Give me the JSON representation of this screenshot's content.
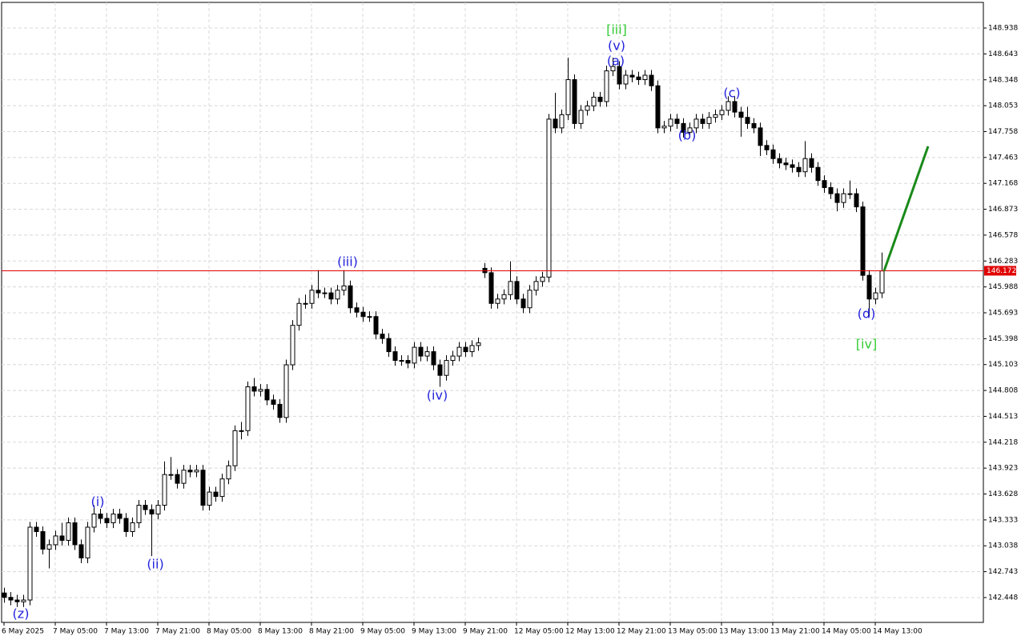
{
  "chart_data": {
    "type": "candlestick",
    "up_color": "#ffffff",
    "down_color": "#000000",
    "edge_color": "#000000",
    "categories": [
      "6 May 2025",
      null,
      null,
      null,
      null,
      null,
      null,
      null,
      "7 May 05:00",
      null,
      null,
      null,
      null,
      null,
      null,
      null,
      "7 May 13:00",
      null,
      null,
      null,
      null,
      null,
      null,
      null,
      "7 May 21:00",
      null,
      null,
      null,
      null,
      null,
      null,
      null,
      "8 May 05:00",
      null,
      null,
      null,
      null,
      null,
      null,
      null,
      "8 May 13:00",
      null,
      null,
      null,
      null,
      null,
      null,
      null,
      "8 May 21:00",
      null,
      null,
      null,
      null,
      null,
      null,
      null,
      "9 May 05:00",
      null,
      null,
      null,
      null,
      null,
      null,
      null,
      "9 May 13:00",
      null,
      null,
      null,
      null,
      null,
      null,
      null,
      "9 May 21:00",
      null,
      null,
      null,
      null,
      null,
      null,
      null,
      "12 May 05:00",
      null,
      null,
      null,
      null,
      null,
      null,
      null,
      "12 May 13:00",
      null,
      null,
      null,
      null,
      null,
      null,
      null,
      "12 May 21:00",
      null,
      null,
      null,
      null,
      null,
      null,
      null,
      "13 May 05:00",
      null,
      null,
      null,
      null,
      null,
      null,
      null,
      "13 May 13:00",
      null,
      null,
      null,
      null,
      null,
      null,
      null,
      "13 May 21:00",
      null,
      null,
      null,
      null,
      null,
      null,
      null,
      "14 May 05:00",
      null,
      null,
      null,
      null,
      null,
      null,
      null,
      "14 May 13:00",
      null
    ],
    "open": [
      142.5,
      142.45,
      142.42,
      142.4,
      142.42,
      143.25,
      143.2,
      143.0,
      143.05,
      143.15,
      143.1,
      143.3,
      143.05,
      142.9,
      143.25,
      143.4,
      143.35,
      143.3,
      143.4,
      143.35,
      143.2,
      143.3,
      143.5,
      143.45,
      143.4,
      143.5,
      143.85,
      143.85,
      143.75,
      143.9,
      143.88,
      143.9,
      143.5,
      143.65,
      143.6,
      143.8,
      143.95,
      144.35,
      144.35,
      144.85,
      144.8,
      144.82,
      144.7,
      144.65,
      144.5,
      145.1,
      145.55,
      145.8,
      145.8,
      145.95,
      145.92,
      145.92,
      145.85,
      145.95,
      146.0,
      145.75,
      145.7,
      145.65,
      145.65,
      145.45,
      145.4,
      145.25,
      145.15,
      145.15,
      145.12,
      145.3,
      145.2,
      145.25,
      145.1,
      144.98,
      145.15,
      145.2,
      145.3,
      145.25,
      145.32,
      146.2,
      146.15,
      145.8,
      145.85,
      145.9,
      146.05,
      145.85,
      145.75,
      145.95,
      146.05,
      146.1,
      147.9,
      147.8,
      147.95,
      148.35,
      147.85,
      148.0,
      148.05,
      148.15,
      148.1,
      148.45,
      148.5,
      148.3,
      148.4,
      148.38,
      148.35,
      148.4,
      148.28,
      147.8,
      147.82,
      147.9,
      147.85,
      147.75,
      147.8,
      147.9,
      147.85,
      147.92,
      147.95,
      148.0,
      148.1,
      147.98,
      147.92,
      147.85,
      147.8,
      147.6,
      147.55,
      147.45,
      147.4,
      147.38,
      147.35,
      147.3,
      147.45,
      147.35,
      147.2,
      147.12,
      147.05,
      146.95,
      147.05,
      147.05,
      146.9,
      146.12,
      145.85,
      145.92
    ],
    "high": [
      142.56,
      142.51,
      142.48,
      142.48,
      143.31,
      143.31,
      143.26,
      143.11,
      143.21,
      143.3,
      143.36,
      143.36,
      143.11,
      143.31,
      143.5,
      143.46,
      143.41,
      143.46,
      143.46,
      143.41,
      143.36,
      143.56,
      143.56,
      143.51,
      143.56,
      144.0,
      144.05,
      143.91,
      143.96,
      143.96,
      143.96,
      143.96,
      143.71,
      143.71,
      143.86,
      144.01,
      144.41,
      144.45,
      144.91,
      144.95,
      144.88,
      144.88,
      144.76,
      144.71,
      145.16,
      145.61,
      145.86,
      145.9,
      146.01,
      146.18,
      145.98,
      145.98,
      146.01,
      146.18,
      146.06,
      145.81,
      145.76,
      145.71,
      145.71,
      145.51,
      145.46,
      145.31,
      145.21,
      145.21,
      145.36,
      145.36,
      145.31,
      145.31,
      145.16,
      145.21,
      145.26,
      145.36,
      145.36,
      145.38,
      145.41,
      146.26,
      146.21,
      145.91,
      145.96,
      146.28,
      146.11,
      145.91,
      146.01,
      146.11,
      146.16,
      147.96,
      148.2,
      148.01,
      148.6,
      148.41,
      148.06,
      148.11,
      148.21,
      148.21,
      148.51,
      148.6,
      148.56,
      148.46,
      148.46,
      148.44,
      148.46,
      148.46,
      148.34,
      147.88,
      147.96,
      147.96,
      147.91,
      147.86,
      147.96,
      147.96,
      147.98,
      148.01,
      148.06,
      148.16,
      148.16,
      148.04,
      148.04,
      147.91,
      147.86,
      147.66,
      147.61,
      147.51,
      147.46,
      147.44,
      147.41,
      147.65,
      147.51,
      147.41,
      147.26,
      147.18,
      147.11,
      147.11,
      147.2,
      147.11,
      146.96,
      146.18,
      145.98,
      146.38
    ],
    "low": [
      142.39,
      142.36,
      142.34,
      142.34,
      142.36,
      143.14,
      142.94,
      142.78,
      142.99,
      143.04,
      143.04,
      142.99,
      142.84,
      142.84,
      143.19,
      143.29,
      143.24,
      143.24,
      143.29,
      143.14,
      143.14,
      143.24,
      143.39,
      142.92,
      143.34,
      143.44,
      143.79,
      143.69,
      143.69,
      143.82,
      143.82,
      143.44,
      143.44,
      143.54,
      143.54,
      143.74,
      143.89,
      144.25,
      144.29,
      144.74,
      144.74,
      144.64,
      144.59,
      144.44,
      144.44,
      145.04,
      145.49,
      145.74,
      145.74,
      145.86,
      145.86,
      145.79,
      145.79,
      145.89,
      145.69,
      145.64,
      145.59,
      145.59,
      145.39,
      145.34,
      145.19,
      145.09,
      145.09,
      145.06,
      145.06,
      145.14,
      145.14,
      145.04,
      144.85,
      144.92,
      145.09,
      145.14,
      145.19,
      145.19,
      145.26,
      146.09,
      145.74,
      145.74,
      145.79,
      145.84,
      145.79,
      145.69,
      145.69,
      145.89,
      145.99,
      146.04,
      147.74,
      147.74,
      147.89,
      147.79,
      147.79,
      147.94,
      147.99,
      148.04,
      148.04,
      148.39,
      148.24,
      148.24,
      148.32,
      148.29,
      148.29,
      148.22,
      147.74,
      147.74,
      147.76,
      147.79,
      147.69,
      147.69,
      147.74,
      147.79,
      147.79,
      147.86,
      147.89,
      147.94,
      147.92,
      147.7,
      147.79,
      147.74,
      147.48,
      147.49,
      147.39,
      147.34,
      147.32,
      147.29,
      147.24,
      147.24,
      147.29,
      147.14,
      147.06,
      146.99,
      146.85,
      146.89,
      146.99,
      146.84,
      146.06,
      145.65,
      145.79,
      145.86
    ],
    "close": [
      142.45,
      142.42,
      142.4,
      142.42,
      143.25,
      143.2,
      143.0,
      143.05,
      143.15,
      143.1,
      143.3,
      143.05,
      142.9,
      143.25,
      143.4,
      143.35,
      143.3,
      143.4,
      143.35,
      143.2,
      143.3,
      143.5,
      143.45,
      143.4,
      143.5,
      143.85,
      143.85,
      143.75,
      143.9,
      143.88,
      143.9,
      143.5,
      143.65,
      143.6,
      143.8,
      143.95,
      144.35,
      144.35,
      144.85,
      144.8,
      144.82,
      144.7,
      144.65,
      144.5,
      145.1,
      145.55,
      145.8,
      145.8,
      145.95,
      145.92,
      145.92,
      145.85,
      145.95,
      146.0,
      145.75,
      145.7,
      145.65,
      145.65,
      145.45,
      145.4,
      145.25,
      145.15,
      145.15,
      145.12,
      145.3,
      145.2,
      145.25,
      145.1,
      144.98,
      145.15,
      145.2,
      145.3,
      145.25,
      145.32,
      145.35,
      146.15,
      145.8,
      145.85,
      145.9,
      146.05,
      145.85,
      145.75,
      145.95,
      146.05,
      146.1,
      147.9,
      147.8,
      147.95,
      148.35,
      147.85,
      148.0,
      148.05,
      148.15,
      148.1,
      148.45,
      148.5,
      148.3,
      148.4,
      148.38,
      148.35,
      148.4,
      148.28,
      147.8,
      147.82,
      147.9,
      147.85,
      147.75,
      147.8,
      147.9,
      147.85,
      147.92,
      147.95,
      148.0,
      148.1,
      147.98,
      147.92,
      147.85,
      147.8,
      147.6,
      147.55,
      147.45,
      147.4,
      147.38,
      147.35,
      147.3,
      147.45,
      147.35,
      147.2,
      147.12,
      147.05,
      146.95,
      147.05,
      147.05,
      146.9,
      146.12,
      145.85,
      145.92,
      146.17
    ],
    "ylim": [
      142.165,
      149.23
    ],
    "yticks": [
      148.938,
      148.643,
      148.348,
      148.053,
      147.758,
      147.463,
      147.168,
      146.873,
      146.578,
      146.283,
      145.988,
      145.693,
      145.398,
      145.103,
      144.808,
      144.513,
      144.218,
      143.923,
      143.628,
      143.333,
      143.038,
      142.743,
      142.448
    ],
    "grid": true,
    "current_price": {
      "value": 146.172,
      "color": "#e00000"
    },
    "forecast": {
      "color": "#1a8a1a",
      "values": [
        146.17,
        147.59
      ]
    },
    "annotations": [
      {
        "text": "(z)",
        "color": "#2222dd"
      },
      {
        "text": "(i)",
        "color": "#2222dd"
      },
      {
        "text": "(ii)",
        "color": "#2222dd"
      },
      {
        "text": "(iii)",
        "color": "#2222dd"
      },
      {
        "text": "(iv)",
        "color": "#2222dd"
      },
      {
        "text": "[iii]",
        "color": "#33cc33"
      },
      {
        "text": "(v)",
        "color": "#2222dd"
      },
      {
        "text": "(a)",
        "color": "#2222dd"
      },
      {
        "text": "(b)",
        "color": "#2222dd"
      },
      {
        "text": "(c)",
        "color": "#2222dd"
      },
      {
        "text": "(d)",
        "color": "#2222dd"
      },
      {
        "text": "[iv]",
        "color": "#33cc33"
      }
    ]
  }
}
